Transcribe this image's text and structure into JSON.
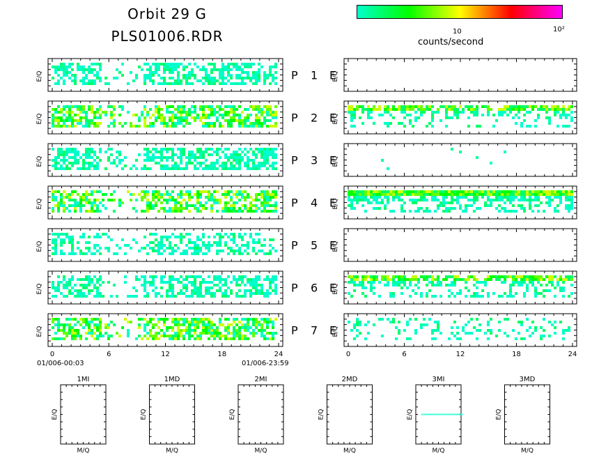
{
  "header": {
    "title_line1": "Orbit 29 G",
    "title_line2": "PLS01006.RDR"
  },
  "colorbar": {
    "ticks": [
      "10",
      "10²"
    ],
    "units": "counts/second",
    "colors": [
      "#00ffcc",
      "#00ff00",
      "#ffff00",
      "#ff0000",
      "#ff00ff"
    ]
  },
  "chart_data": [
    {
      "type": "heatmap",
      "panel_group": "P/E spectrogram",
      "ylabel": "E/Q",
      "x_ticks": [
        "0",
        "6",
        "12",
        "18",
        "24"
      ],
      "xlim": [
        0,
        24
      ],
      "time_start_label": "01/006-00:03",
      "time_end_label": "01/006-23:59",
      "rows": [
        {
          "label": [
            "P",
            "1",
            "E"
          ],
          "left_density": 0.55,
          "left_intensity": "low",
          "right_density": 0.0,
          "right_band": null
        },
        {
          "label": [
            "P",
            "2",
            "E"
          ],
          "left_density": 0.65,
          "left_intensity": "low-medium",
          "right_density": 0.45,
          "right_band": "medium"
        },
        {
          "label": [
            "P",
            "3",
            "E"
          ],
          "left_density": 0.6,
          "left_intensity": "low",
          "right_density": 0.01,
          "right_band": null
        },
        {
          "label": [
            "P",
            "4",
            "E"
          ],
          "left_density": 0.6,
          "left_intensity": "low-medium",
          "right_density": 0.7,
          "right_band": "medium"
        },
        {
          "label": [
            "P",
            "5",
            "E"
          ],
          "left_density": 0.45,
          "left_intensity": "low",
          "right_density": 0.0,
          "right_band": null
        },
        {
          "label": [
            "P",
            "6",
            "E"
          ],
          "left_density": 0.55,
          "left_intensity": "low",
          "right_density": 0.5,
          "right_band": "medium"
        },
        {
          "label": [
            "P",
            "7",
            "E"
          ],
          "left_density": 0.6,
          "left_intensity": "low-medium",
          "right_density": 0.2,
          "right_band": null
        }
      ]
    },
    {
      "type": "heatmap",
      "panel_group": "M/Q vs E/Q",
      "xlabel": "M/Q",
      "ylabel": "E/Q",
      "panels": [
        {
          "title": "1MI",
          "has_data": false
        },
        {
          "title": "1MD",
          "has_data": false
        },
        {
          "title": "2MI",
          "has_data": false
        },
        {
          "title": "2MD",
          "has_data": false
        },
        {
          "title": "3MI",
          "has_data": true
        },
        {
          "title": "3MD",
          "has_data": false
        }
      ]
    }
  ]
}
